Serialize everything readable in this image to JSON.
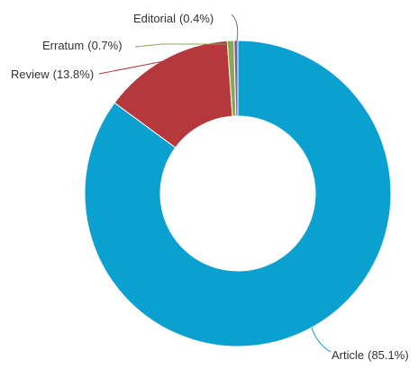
{
  "chart_data": {
    "type": "donut",
    "categories": [
      "Article",
      "Review",
      "Erratum",
      "Editorial"
    ],
    "values": [
      85.1,
      13.8,
      0.7,
      0.4
    ],
    "value_labels": [
      "(85.1%)",
      "(13.8%)",
      "(0.7%)",
      "(0.4%)"
    ],
    "colors": [
      "#0aa0cf",
      "#b5383d",
      "#8aa84f",
      "#7b5ea8"
    ]
  }
}
